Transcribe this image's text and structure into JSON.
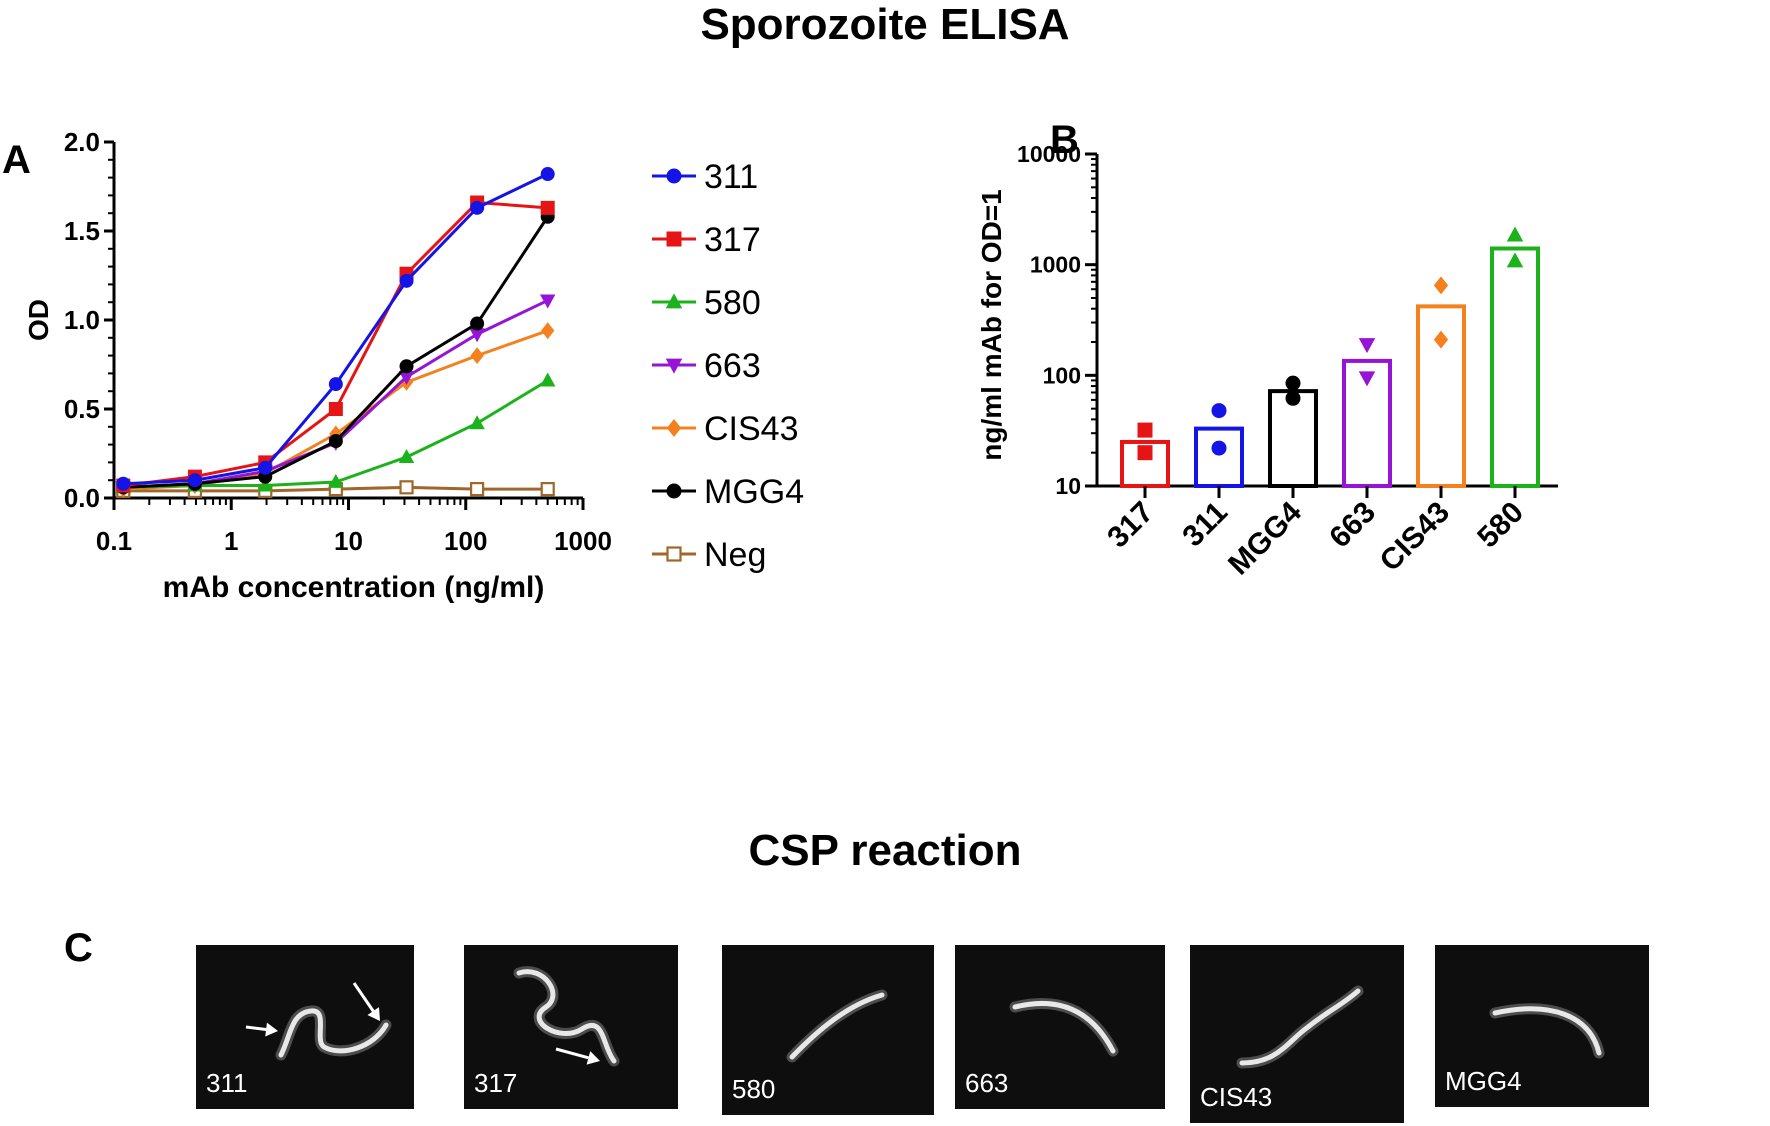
{
  "titles": {
    "top": "Sporozoite ELISA",
    "middle": "CSP reaction"
  },
  "panels": {
    "a": "A",
    "b": "B",
    "c": "C"
  },
  "chart_data": [
    {
      "type": "line",
      "panel": "A",
      "xlabel": "mAb concentration  (ng/ml)",
      "ylabel": "OD",
      "x_scale": "log",
      "xlim": [
        0.1,
        1000
      ],
      "ylim": [
        0,
        2.0
      ],
      "x_ticks": [
        0.1,
        1,
        10,
        100,
        1000
      ],
      "x_tick_labels": [
        "0.1",
        "1",
        "10",
        "100",
        "1000"
      ],
      "y_ticks": [
        0,
        0.5,
        1.0,
        1.5,
        2.0
      ],
      "y_tick_labels": [
        "0.0",
        "0.5",
        "1.0",
        "1.5",
        "2.0"
      ],
      "x": [
        0.12,
        0.49,
        1.95,
        7.8,
        31.25,
        125,
        500
      ],
      "grid": false,
      "legend_position": "right",
      "series": [
        {
          "name": "311",
          "values": [
            0.08,
            0.1,
            0.17,
            0.64,
            1.22,
            1.63,
            1.82
          ],
          "color": "#1414e6",
          "marker": "circle"
        },
        {
          "name": "317",
          "values": [
            0.07,
            0.12,
            0.2,
            0.5,
            1.26,
            1.66,
            1.63
          ],
          "color": "#e61414",
          "marker": "square"
        },
        {
          "name": "580",
          "values": [
            0.06,
            0.07,
            0.07,
            0.09,
            0.23,
            0.42,
            0.66
          ],
          "color": "#1cb21c",
          "marker": "triangle-up"
        },
        {
          "name": "663",
          "values": [
            0.06,
            0.08,
            0.15,
            0.31,
            0.68,
            0.92,
            1.11
          ],
          "color": "#9614d6",
          "marker": "triangle-down"
        },
        {
          "name": "CIS43",
          "values": [
            0.05,
            0.07,
            0.14,
            0.36,
            0.65,
            0.8,
            0.94
          ],
          "color": "#f5801e",
          "marker": "diamond"
        },
        {
          "name": "MGG4",
          "values": [
            0.06,
            0.08,
            0.12,
            0.32,
            0.74,
            0.98,
            1.58
          ],
          "color": "#000000",
          "marker": "circle"
        },
        {
          "name": "Neg",
          "values": [
            0.04,
            0.04,
            0.04,
            0.05,
            0.06,
            0.05,
            0.05
          ],
          "color": "#a0662a",
          "marker": "square-open"
        }
      ]
    },
    {
      "type": "bar",
      "panel": "B",
      "ylabel": "ng/ml mAb for OD=1",
      "y_scale": "log",
      "ylim": [
        10,
        10000
      ],
      "y_ticks": [
        10,
        100,
        1000,
        10000
      ],
      "y_tick_labels": [
        "10",
        "100",
        "1000",
        "10000"
      ],
      "categories": [
        "317",
        "311",
        "MGG4",
        "663",
        "CIS43",
        "580"
      ],
      "bar_values": [
        25,
        33,
        72,
        135,
        420,
        1400
      ],
      "points": [
        [
          32,
          20
        ],
        [
          48,
          22
        ],
        [
          85,
          62
        ],
        [
          190,
          95
        ],
        [
          650,
          210
        ],
        [
          1850,
          1080
        ]
      ],
      "colors": [
        "#e61414",
        "#1414e6",
        "#000000",
        "#9614d6",
        "#f5801e",
        "#1cb21c"
      ],
      "markers": [
        "square",
        "circle",
        "circle",
        "triangle-down",
        "diamond",
        "triangle-up"
      ]
    }
  ],
  "micrographs": [
    {
      "label": "311"
    },
    {
      "label": "317"
    },
    {
      "label": "580"
    },
    {
      "label": "663"
    },
    {
      "label": "CIS43"
    },
    {
      "label": "MGG4"
    }
  ]
}
